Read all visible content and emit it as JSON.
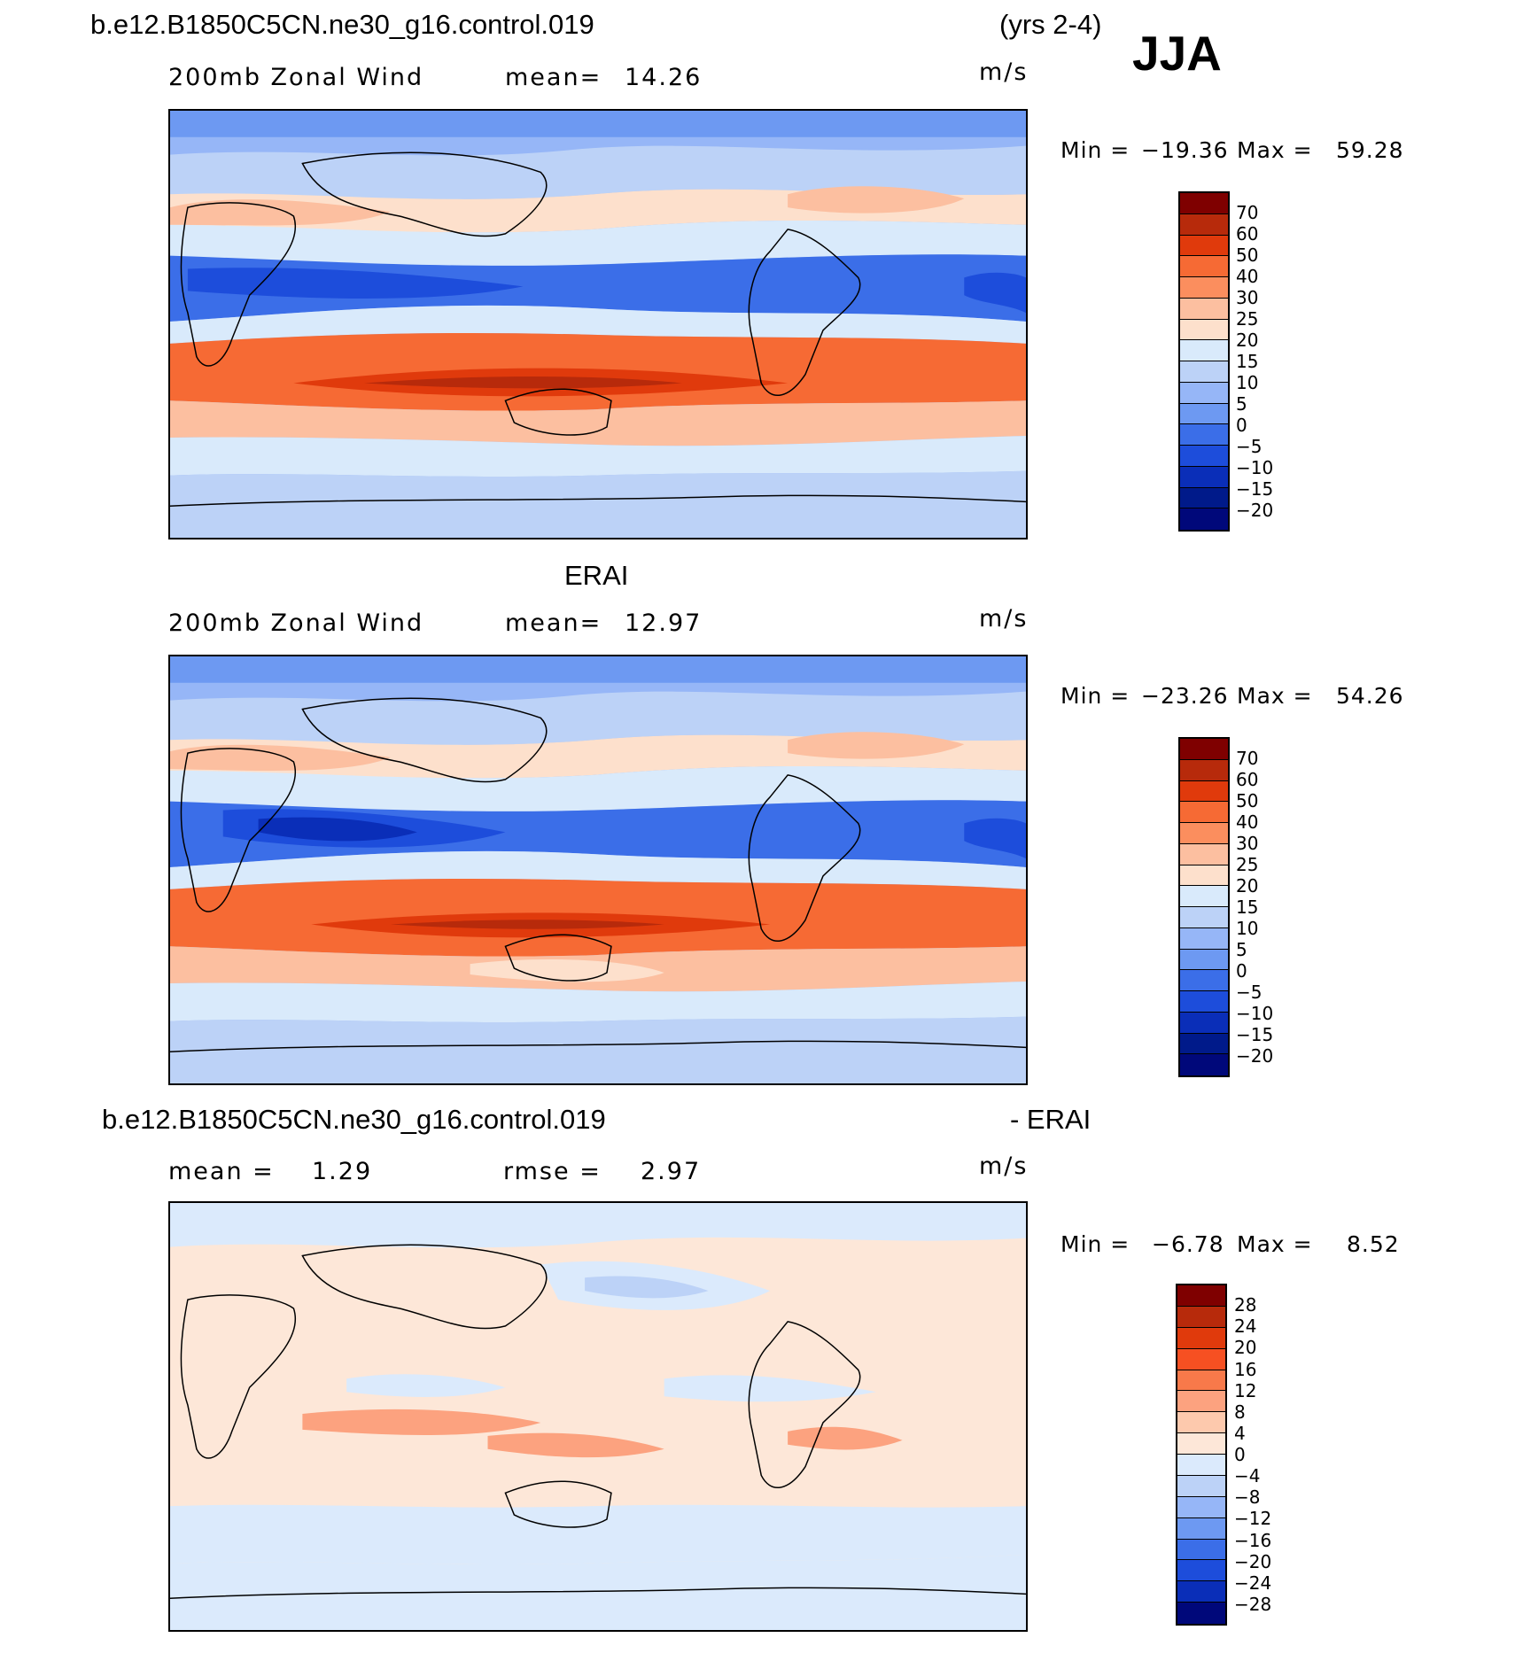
{
  "header": {
    "case_name": "b.e12.B1850C5CN.ne30_g16.control.019",
    "years": "(yrs 2-4)",
    "season": "JJA"
  },
  "panels": [
    {
      "id": "model",
      "title": "",
      "left_label": "200mb Zonal Wind",
      "stat_label": "mean=",
      "stat_value": "14.26",
      "stat2_label": "",
      "stat2_value": "",
      "units": "m/s",
      "min_label": "Min =",
      "min_value": "−19.36",
      "max_label": "Max =",
      "max_value": "59.28"
    },
    {
      "id": "obs",
      "title": "ERAI",
      "left_label": "200mb Zonal Wind",
      "stat_label": "mean=",
      "stat_value": "12.97",
      "stat2_label": "",
      "stat2_value": "",
      "units": "m/s",
      "min_label": "Min =",
      "min_value": "−23.26",
      "max_label": "Max =",
      "max_value": "54.26"
    },
    {
      "id": "diff",
      "title_left": "b.e12.B1850C5CN.ne30_g16.control.019",
      "title_right": "- ERAI",
      "stat_label": "mean =",
      "stat_value": "1.29",
      "stat2_label": "rmse =",
      "stat2_value": "2.97",
      "units": "m/s",
      "min_label": "Min =",
      "min_value": "−6.78",
      "max_label": "Max =",
      "max_value": "8.52"
    }
  ],
  "colorbars": {
    "wind": {
      "labels": [
        "70",
        "60",
        "50",
        "40",
        "30",
        "25",
        "20",
        "15",
        "10",
        "5",
        "0",
        "−5",
        "−10",
        "−15",
        "−20"
      ],
      "colors": [
        "#7f0000",
        "#b72a0b",
        "#e03a0c",
        "#f66a34",
        "#fb8e5e",
        "#fcbfa0",
        "#fde0cc",
        "#d9eafb",
        "#bcd2f7",
        "#96b6f7",
        "#6d99f2",
        "#3b6ee8",
        "#1d4ddb",
        "#0a2eb8",
        "#001a8a",
        "#00087a"
      ]
    },
    "diff": {
      "labels": [
        "28",
        "24",
        "20",
        "16",
        "12",
        "8",
        "4",
        "0",
        "−4",
        "−8",
        "−12",
        "−16",
        "−20",
        "−24",
        "−28"
      ],
      "colors": [
        "#7f0000",
        "#b72a0b",
        "#e03a0c",
        "#f65022",
        "#f8794a",
        "#fca27f",
        "#fdc9ad",
        "#fde7d8",
        "#dbeafc",
        "#bcd2f7",
        "#96b6f7",
        "#6d99f2",
        "#3b6ee8",
        "#1d4ddb",
        "#0a2eb8",
        "#00087a"
      ]
    }
  }
}
